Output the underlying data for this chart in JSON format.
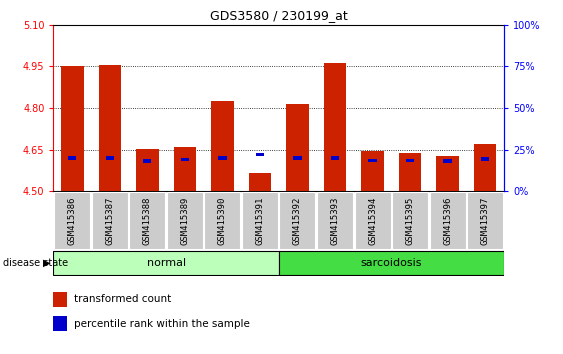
{
  "title": "GDS3580 / 230199_at",
  "samples": [
    "GSM415386",
    "GSM415387",
    "GSM415388",
    "GSM415389",
    "GSM415390",
    "GSM415391",
    "GSM415392",
    "GSM415393",
    "GSM415394",
    "GSM415395",
    "GSM415396",
    "GSM415397"
  ],
  "transformed_count": [
    4.95,
    4.956,
    4.652,
    4.66,
    4.825,
    4.565,
    4.815,
    4.962,
    4.645,
    4.636,
    4.625,
    4.67
  ],
  "percentile_rank": [
    20.0,
    20.0,
    18.0,
    19.0,
    20.0,
    22.0,
    20.0,
    20.0,
    18.5,
    18.5,
    18.0,
    19.5
  ],
  "y_min": 4.5,
  "y_max": 5.1,
  "y_ticks": [
    4.5,
    4.65,
    4.8,
    4.95,
    5.1
  ],
  "right_y_ticks": [
    0,
    25,
    50,
    75,
    100
  ],
  "right_y_labels": [
    "0%",
    "25%",
    "50%",
    "75%",
    "100%"
  ],
  "bar_color": "#cc2200",
  "percentile_color": "#0000cc",
  "normal_group": [
    0,
    1,
    2,
    3,
    4,
    5
  ],
  "sarcoidosis_group": [
    6,
    7,
    8,
    9,
    10,
    11
  ],
  "normal_color": "#bbffbb",
  "sarcoidosis_color": "#44dd44",
  "label_bg_color": "#cccccc",
  "bar_width": 0.6,
  "percentile_bar_width": 0.22
}
